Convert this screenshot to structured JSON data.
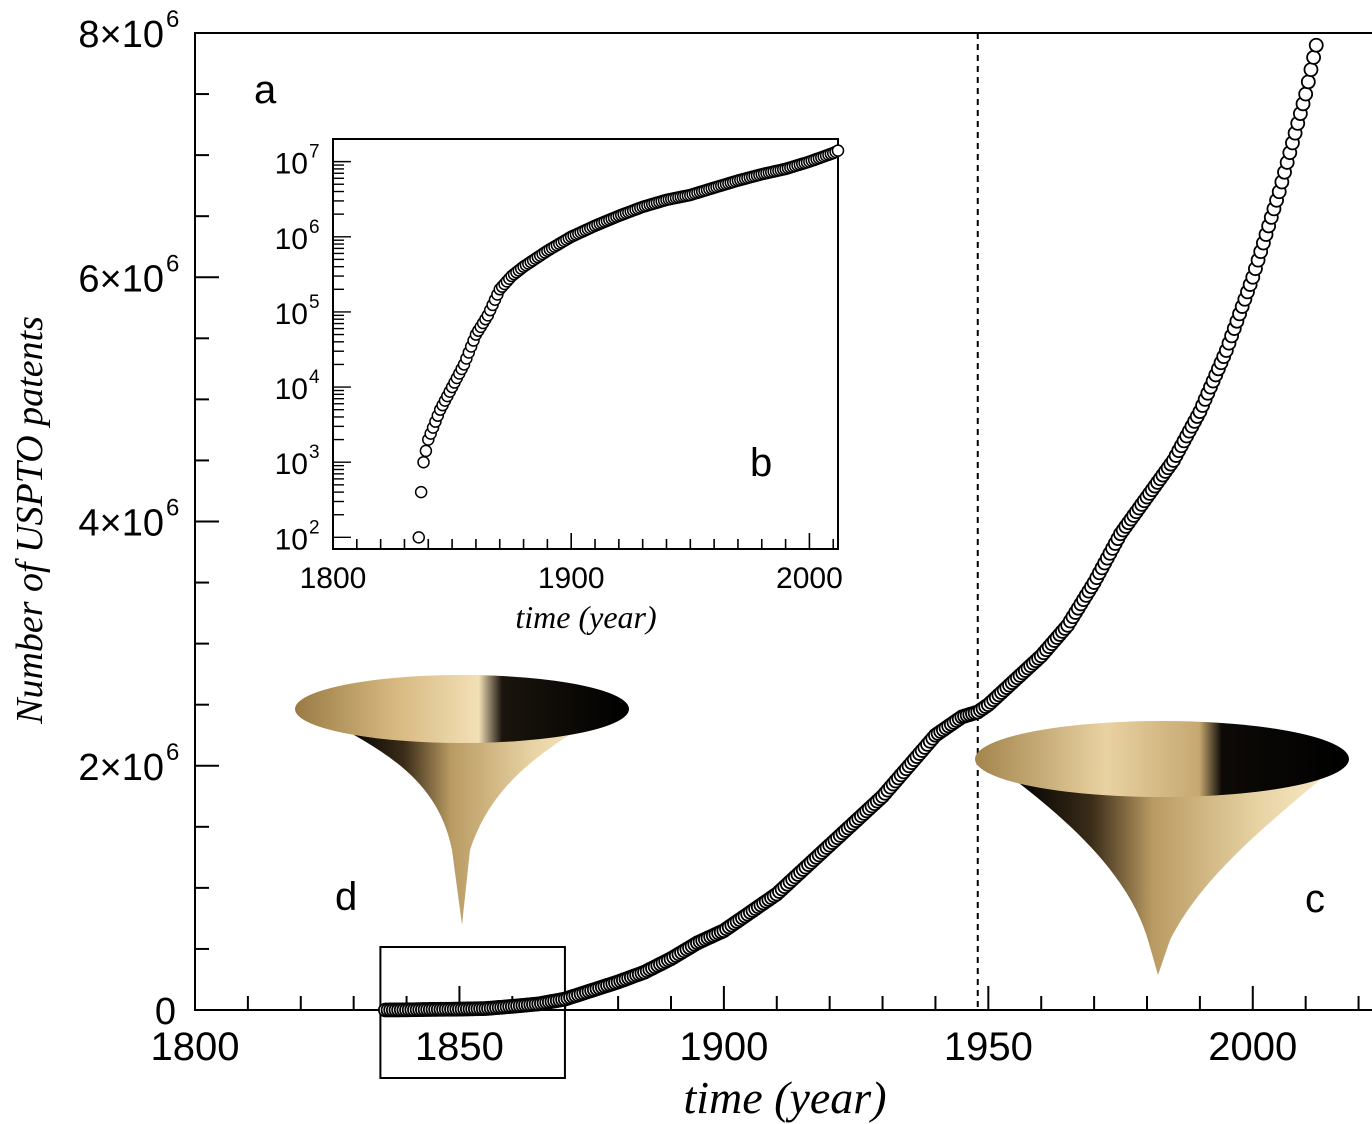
{
  "chart_data": [
    {
      "panel": "a",
      "type": "scatter",
      "title": "",
      "xlabel": "time (year)",
      "ylabel": "Number of USPTO patents",
      "xlim": [
        1800,
        2025
      ],
      "ylim": [
        0,
        8000000
      ],
      "x_ticks": [
        "1800",
        "1850",
        "1900",
        "1950",
        "2000"
      ],
      "y_ticks": [
        {
          "mantissa": "0",
          "exp": ""
        },
        {
          "mantissa": "2×10",
          "exp": "6"
        },
        {
          "mantissa": "4×10",
          "exp": "6"
        },
        {
          "mantissa": "6×10",
          "exp": "6"
        },
        {
          "mantissa": "8×10",
          "exp": "6"
        }
      ],
      "marker": "open-circle",
      "vertical_line": {
        "x": 1948,
        "style": "dashed"
      },
      "highlight_box": {
        "x_range": [
          1836,
          1869
        ]
      },
      "series": [
        {
          "x": [
            1836,
            1840,
            1845,
            1850,
            1855,
            1860,
            1865,
            1870,
            1875,
            1880,
            1885,
            1890,
            1895,
            1900,
            1905,
            1910,
            1915,
            1920,
            1925,
            1930,
            1935,
            1940,
            1945,
            1948,
            1950,
            1955,
            1960,
            1965,
            1970,
            1975,
            1980,
            1985,
            1990,
            1995,
            2000,
            2005,
            2010,
            2012
          ],
          "y": [
            100,
            1000,
            5000,
            7000,
            12000,
            30000,
            50000,
            90000,
            160000,
            230000,
            310000,
            420000,
            550000,
            650000,
            800000,
            950000,
            1150000,
            1350000,
            1550000,
            1750000,
            2000000,
            2250000,
            2400000,
            2440000,
            2500000,
            2700000,
            2900000,
            3150000,
            3500000,
            3900000,
            4200000,
            4500000,
            4900000,
            5400000,
            6000000,
            6700000,
            7500000,
            7900000
          ]
        }
      ]
    },
    {
      "panel": "b",
      "type": "scatter",
      "title": "",
      "xlabel": "time (year)",
      "ylabel": "",
      "xlim": [
        1800,
        2012
      ],
      "ylim": [
        70,
        20000000
      ],
      "yscale": "log",
      "x_ticks": [
        "1800",
        "1900",
        "2000"
      ],
      "y_ticks": [
        {
          "mantissa": "10",
          "exp": "2"
        },
        {
          "mantissa": "10",
          "exp": "3"
        },
        {
          "mantissa": "10",
          "exp": "4"
        },
        {
          "mantissa": "10",
          "exp": "5"
        },
        {
          "mantissa": "10",
          "exp": "6"
        },
        {
          "mantissa": "10",
          "exp": "7"
        }
      ],
      "marker": "open-circle",
      "series": [
        {
          "x": [
            1836,
            1837,
            1838,
            1840,
            1845,
            1850,
            1855,
            1860,
            1865,
            1870,
            1875,
            1880,
            1890,
            1900,
            1910,
            1920,
            1930,
            1940,
            1950,
            1960,
            1970,
            1980,
            1990,
            2000,
            2010,
            2012
          ],
          "y": [
            100,
            400,
            1000,
            2000,
            5000,
            10000,
            20000,
            50000,
            90000,
            200000,
            300000,
            400000,
            650000,
            1000000,
            1400000,
            1900000,
            2500000,
            3100000,
            3600000,
            4500000,
            5600000,
            6800000,
            8000000,
            10000000,
            13000000,
            14000000
          ]
        }
      ]
    }
  ],
  "labels": {
    "a": "a",
    "b": "b",
    "c": "c",
    "d": "d"
  }
}
